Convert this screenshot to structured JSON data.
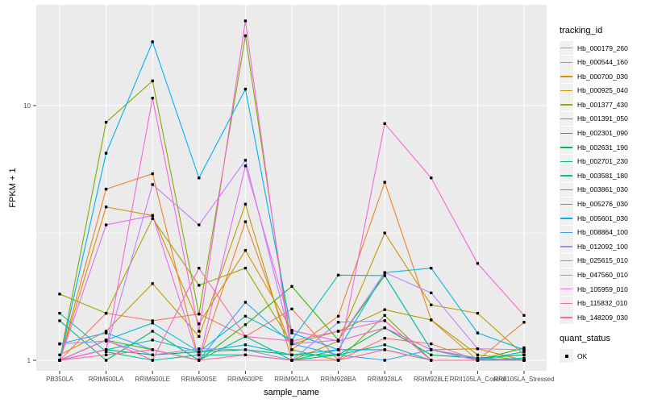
{
  "figure": {
    "background": "#FFFFFF",
    "panel_background": "#EBEBEB",
    "grid_color": "#FFFFFF",
    "axis_text_color": "#4D4D4D",
    "axis_title_color": "#000000",
    "tick_color": "#333333",
    "marker_color": "#000000",
    "legend_key_background": "#F0F0F0"
  },
  "chart_data": {
    "type": "line",
    "title": "",
    "xlabel": "sample_name",
    "ylabel": "FPKM + 1",
    "y_scale": "log10",
    "ylim": [
      0.91,
      24.8
    ],
    "grid": true,
    "legend_position": "right",
    "y_ticks": [
      {
        "value": 1,
        "label": "1"
      },
      {
        "value": 10,
        "label": "10"
      }
    ],
    "y_minor_gridlines": [
      3.162
    ],
    "categories": [
      "PB350LA",
      "RRIM600LA",
      "RRIM600LE",
      "RRIM600SE",
      "RRIM600PE",
      "RRIM901LA",
      "RRIM928BA",
      "RRIM928LA",
      "RRIM928LE",
      "RRII105LA_Control",
      "RRII105LA_Stressed"
    ],
    "series": [
      {
        "name": "Hb_000179_260",
        "color": "#F8766D",
        "values": [
          1.0,
          1.53,
          1.43,
          1.52,
          1.24,
          1.59,
          1.0,
          1.22,
          1.16,
          1.0,
          1.0
        ]
      },
      {
        "name": "Hb_000544_160",
        "color": "#EA8331",
        "values": [
          1.0,
          4.7,
          5.4,
          1.0,
          3.5,
          1.1,
          1.49,
          5.0,
          1.44,
          1.0,
          1.41
        ]
      },
      {
        "name": "Hb_000700_030",
        "color": "#D89000",
        "values": [
          1.0,
          4.0,
          3.7,
          1.39,
          2.7,
          1.31,
          1.19,
          1.34,
          1.1,
          1.11,
          1.0
        ]
      },
      {
        "name": "Hb_000925_040",
        "color": "#C09B00",
        "values": [
          1.05,
          1.3,
          2.0,
          1.24,
          4.1,
          1.0,
          1.19,
          3.16,
          1.65,
          1.53,
          1.05
        ]
      },
      {
        "name": "Hb_001377_430",
        "color": "#A3A500",
        "values": [
          1.82,
          1.53,
          3.6,
          1.97,
          2.3,
          1.16,
          1.3,
          1.58,
          1.44,
          1.05,
          1.0
        ]
      },
      {
        "name": "Hb_001391_050",
        "color": "#7CAE00",
        "values": [
          1.0,
          8.6,
          12.5,
          1.52,
          18.8,
          1.1,
          1.0,
          1.5,
          1.0,
          1.0,
          1.0
        ]
      },
      {
        "name": "Hb_002301_090",
        "color": "#39B600",
        "values": [
          1.0,
          1.2,
          1.1,
          1.0,
          1.38,
          1.95,
          1.2,
          2.15,
          1.1,
          1.0,
          1.12
        ]
      },
      {
        "name": "Hb_002631_190",
        "color": "#00BB4E",
        "values": [
          1.0,
          1.1,
          1.05,
          1.08,
          1.1,
          1.05,
          1.05,
          1.34,
          1.05,
          1.02,
          1.05
        ]
      },
      {
        "name": "Hb_002701_230",
        "color": "#00BF7D",
        "values": [
          1.43,
          1.0,
          1.3,
          1.0,
          1.24,
          1.0,
          1.1,
          1.1,
          1.0,
          1.0,
          1.0
        ]
      },
      {
        "name": "Hb_003581_180",
        "color": "#00C1A3",
        "values": [
          1.53,
          1.08,
          1.0,
          1.05,
          1.05,
          1.0,
          1.05,
          1.15,
          1.0,
          1.0,
          1.02
        ]
      },
      {
        "name": "Hb_003861_030",
        "color": "#00BFC4",
        "values": [
          1.0,
          1.1,
          1.2,
          1.08,
          1.49,
          1.2,
          2.16,
          2.15,
          1.1,
          1.0,
          1.08
        ]
      },
      {
        "name": "Hb_005276_030",
        "color": "#00BAE0",
        "values": [
          1.0,
          1.2,
          1.4,
          1.08,
          1.15,
          1.05,
          1.1,
          2.21,
          2.3,
          1.28,
          1.1
        ]
      },
      {
        "name": "Hb_005601_030",
        "color": "#00B0F6",
        "values": [
          1.0,
          6.5,
          17.8,
          5.2,
          11.6,
          1.28,
          1.1,
          1.1,
          1.0,
          1.0,
          1.0
        ]
      },
      {
        "name": "Hb_008864_100",
        "color": "#35A2FF",
        "values": [
          1.16,
          1.28,
          1.1,
          1.0,
          1.69,
          1.16,
          1.05,
          1.0,
          1.1,
          1.02,
          1.0
        ]
      },
      {
        "name": "Hb_012092_100",
        "color": "#9590FF",
        "values": [
          1.16,
          1.19,
          1.05,
          1.11,
          1.1,
          1.0,
          1.41,
          1.43,
          1.0,
          1.0,
          1.0
        ]
      },
      {
        "name": "Hb_025615_010",
        "color": "#C77CFF",
        "values": [
          1.0,
          1.1,
          4.9,
          3.4,
          6.1,
          1.16,
          1.2,
          2.21,
          1.84,
          1.11,
          1.1
        ]
      },
      {
        "name": "Hb_047560_010",
        "color": "#E76BF3",
        "values": [
          1.0,
          3.4,
          3.7,
          1.0,
          5.8,
          1.31,
          1.19,
          1.34,
          1.1,
          1.0,
          1.0
        ]
      },
      {
        "name": "Hb_105959_010",
        "color": "#FA62DB",
        "values": [
          1.0,
          1.1,
          10.7,
          1.3,
          21.5,
          1.0,
          1.0,
          8.5,
          5.2,
          2.4,
          1.5
        ]
      },
      {
        "name": "Hb_115832_010",
        "color": "#FF62BC",
        "values": [
          1.0,
          1.2,
          1.0,
          2.3,
          1.24,
          1.19,
          1.3,
          1.43,
          1.0,
          1.0,
          1.0
        ]
      },
      {
        "name": "Hb_148209_030",
        "color": "#FF6A98",
        "values": [
          1.0,
          1.05,
          1.1,
          1.0,
          1.05,
          1.0,
          1.0,
          1.1,
          1.0,
          1.0,
          1.0
        ]
      }
    ],
    "legend": {
      "line_legend_title": "tracking_id",
      "point_legend_title": "quant_status",
      "point_legend_entries": [
        "OK"
      ]
    }
  }
}
